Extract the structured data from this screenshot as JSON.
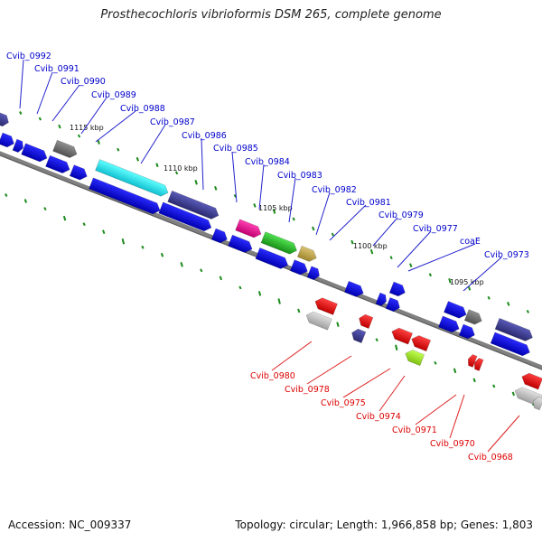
{
  "title": "Prosthecochloris vibrioformis DSM 265, complete genome",
  "footer": {
    "accession": "Accession: NC_009337",
    "stats": "Topology: circular; Length: 1,966,858 bp; Genes: 1,803"
  },
  "ticks": [
    "1115 kbp",
    "1110 kbp",
    "1105 kbp",
    "1100 kbp",
    "1095 kbp"
  ],
  "labels_top": [
    "Cvib_0992",
    "Cvib_0991",
    "Cvib_0990",
    "Cvib_0989",
    "Cvib_0988",
    "Cvib_0987",
    "Cvib_0986",
    "Cvib_0985",
    "Cvib_0984",
    "Cvib_0983",
    "Cvib_0982",
    "Cvib_0981",
    "Cvib_0979",
    "Cvib_0977",
    "coaE",
    "Cvib_0973"
  ],
  "labels_bottom": [
    "Cvib_0980",
    "Cvib_0978",
    "Cvib_0975",
    "Cvib_0974",
    "Cvib_0971",
    "Cvib_0970",
    "Cvib_0968"
  ],
  "colors": {
    "forward_label": "#0000cc",
    "reverse_label": "#dd0000",
    "backbone": "#808080",
    "gc_marks": "#1a8a1a",
    "gene_blue": "#1010e0",
    "gene_navy": "#4a4aa0",
    "gene_cyan": "#20e0e8",
    "gene_red": "#ee1010",
    "gene_gray": "#707070",
    "gene_lightgray": "#c0c0c0",
    "gene_magenta": "#e01890",
    "gene_green": "#30c030",
    "gene_khaki": "#c0a850",
    "gene_lime": "#a0e030"
  }
}
